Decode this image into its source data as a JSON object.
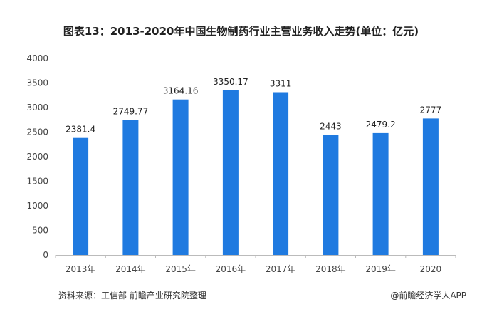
{
  "title": "图表13：2013-2020年中国生物制药行业主营业务收入走势(单位：亿元)",
  "footer": {
    "source": "资料来源：工信部 前瞻产业研究院整理",
    "brand": "@前瞻经济学人APP"
  },
  "colors": {
    "bar": "#1f7ae0",
    "axis": "#bbbbbb"
  },
  "chart_data": {
    "type": "bar",
    "title": "图表13：2013-2020年中国生物制药行业主营业务收入走势(单位：亿元)",
    "categories": [
      "2013年",
      "2014年",
      "2015年",
      "2016年",
      "2017年",
      "2018年",
      "2019年",
      "2020"
    ],
    "values": [
      2381.4,
      2749.77,
      3164.16,
      3350.17,
      3311,
      2443,
      2479.2,
      2777
    ],
    "value_labels": [
      "2381.4",
      "2749.77",
      "3164.16",
      "3350.17",
      "3311",
      "2443",
      "2479.2",
      "2777"
    ],
    "yticks": [
      0,
      500,
      1000,
      1500,
      2000,
      2500,
      3000,
      3500,
      4000
    ],
    "ylim": [
      0,
      4000
    ],
    "xlabel": "",
    "ylabel": "",
    "grid": false,
    "legend": "none"
  }
}
